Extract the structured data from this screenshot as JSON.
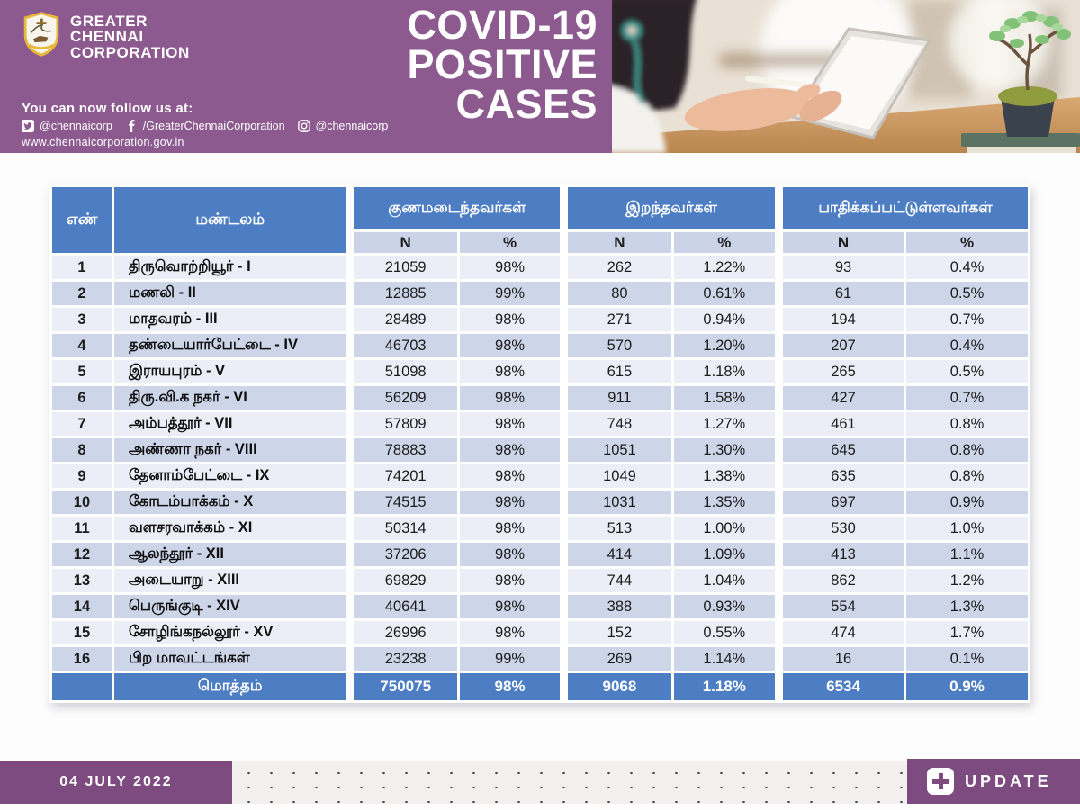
{
  "brand": {
    "name_lines": "GREATER\nCHENNAI\nCORPORATION",
    "follow_title": "You can now follow us at:",
    "social": [
      {
        "icon": "twitter-icon",
        "handle": "@chennaicorp"
      },
      {
        "icon": "facebook-icon",
        "handle": "/GreaterChennaiCorporation"
      },
      {
        "icon": "instagram-icon",
        "handle": "@chennaicorp"
      }
    ],
    "website": "www.chennaicorporation.gov.in"
  },
  "title": {
    "line1": "COVID-19",
    "line2": "POSITIVE",
    "line3": "CASES"
  },
  "colors": {
    "banner_purple": "#8d5a90",
    "footer_purple": "#7d4b7f",
    "table_header_blue": "#4d7ec3",
    "subheader_bg": "#cbd3e9",
    "row_light": "#ebeef7",
    "row_dark": "#cdd5e9"
  },
  "table": {
    "headers": {
      "num": "எண்",
      "zone": "மண்டலம்",
      "recovered": "குணமடைந்தவர்கள்",
      "deceased": "இறந்தவர்கள்",
      "affected": "பாதிக்கப்பட்டுள்ளவர்கள்",
      "n": "N",
      "pct": "%"
    },
    "rows": [
      {
        "num": "1",
        "zone": "திருவொற்றியூர் - I",
        "rec_n": "21059",
        "rec_pct": "98%",
        "dec_n": "262",
        "dec_pct": "1.22%",
        "act_n": "93",
        "act_pct": "0.4%"
      },
      {
        "num": "2",
        "zone": "மணலி - II",
        "rec_n": "12885",
        "rec_pct": "99%",
        "dec_n": "80",
        "dec_pct": "0.61%",
        "act_n": "61",
        "act_pct": "0.5%"
      },
      {
        "num": "3",
        "zone": "மாதவரம் - III",
        "rec_n": "28489",
        "rec_pct": "98%",
        "dec_n": "271",
        "dec_pct": "0.94%",
        "act_n": "194",
        "act_pct": "0.7%"
      },
      {
        "num": "4",
        "zone": "தண்டையார்பேட்டை - IV",
        "rec_n": "46703",
        "rec_pct": "98%",
        "dec_n": "570",
        "dec_pct": "1.20%",
        "act_n": "207",
        "act_pct": "0.4%"
      },
      {
        "num": "5",
        "zone": "இராயபுரம் - V",
        "rec_n": "51098",
        "rec_pct": "98%",
        "dec_n": "615",
        "dec_pct": "1.18%",
        "act_n": "265",
        "act_pct": "0.5%"
      },
      {
        "num": "6",
        "zone": "திரு.வி.க நகர் - VI",
        "rec_n": "56209",
        "rec_pct": "98%",
        "dec_n": "911",
        "dec_pct": "1.58%",
        "act_n": "427",
        "act_pct": "0.7%"
      },
      {
        "num": "7",
        "zone": "அம்பத்தூர் - VII",
        "rec_n": "57809",
        "rec_pct": "98%",
        "dec_n": "748",
        "dec_pct": "1.27%",
        "act_n": "461",
        "act_pct": "0.8%"
      },
      {
        "num": "8",
        "zone": "அண்ணா நகர் - VIII",
        "rec_n": "78883",
        "rec_pct": "98%",
        "dec_n": "1051",
        "dec_pct": "1.30%",
        "act_n": "645",
        "act_pct": "0.8%"
      },
      {
        "num": "9",
        "zone": "தேனாம்பேட்டை - IX",
        "rec_n": "74201",
        "rec_pct": "98%",
        "dec_n": "1049",
        "dec_pct": "1.38%",
        "act_n": "635",
        "act_pct": "0.8%"
      },
      {
        "num": "10",
        "zone": "கோடம்பாக்கம் - X",
        "rec_n": "74515",
        "rec_pct": "98%",
        "dec_n": "1031",
        "dec_pct": "1.35%",
        "act_n": "697",
        "act_pct": "0.9%"
      },
      {
        "num": "11",
        "zone": "வளசரவாக்கம் - XI",
        "rec_n": "50314",
        "rec_pct": "98%",
        "dec_n": "513",
        "dec_pct": "1.00%",
        "act_n": "530",
        "act_pct": "1.0%"
      },
      {
        "num": "12",
        "zone": "ஆலந்தூர் - XII",
        "rec_n": "37206",
        "rec_pct": "98%",
        "dec_n": "414",
        "dec_pct": "1.09%",
        "act_n": "413",
        "act_pct": "1.1%"
      },
      {
        "num": "13",
        "zone": "அடையாறு - XIII",
        "rec_n": "69829",
        "rec_pct": "98%",
        "dec_n": "744",
        "dec_pct": "1.04%",
        "act_n": "862",
        "act_pct": "1.2%"
      },
      {
        "num": "14",
        "zone": "பெருங்குடி - XIV",
        "rec_n": "40641",
        "rec_pct": "98%",
        "dec_n": "388",
        "dec_pct": "0.93%",
        "act_n": "554",
        "act_pct": "1.3%"
      },
      {
        "num": "15",
        "zone": "சோழிங்கநல்லூர் - XV",
        "rec_n": "26996",
        "rec_pct": "98%",
        "dec_n": "152",
        "dec_pct": "0.55%",
        "act_n": "474",
        "act_pct": "1.7%"
      },
      {
        "num": "16",
        "zone": "பிற மாவட்டங்கள்",
        "rec_n": "23238",
        "rec_pct": "99%",
        "dec_n": "269",
        "dec_pct": "1.14%",
        "act_n": "16",
        "act_pct": "0.1%"
      }
    ],
    "total": {
      "label": "மொத்தம்",
      "rec_n": "750075",
      "rec_pct": "98%",
      "dec_n": "9068",
      "dec_pct": "1.18%",
      "act_n": "6534",
      "act_pct": "0.9%"
    }
  },
  "footer": {
    "date": "04 JULY 2022",
    "update_label": "UPDATE"
  },
  "chart_data": {
    "type": "table",
    "title": "COVID-19 POSITIVE CASES",
    "columns": [
      "எண்",
      "மண்டலம்",
      "குணமடைந்தவர்கள் N",
      "குணமடைந்தவர்கள் %",
      "இறந்தவர்கள் N",
      "இறந்தவர்கள் %",
      "பாதிக்கப்பட்டுள்ளவர்கள் N",
      "பாதிக்கப்பட்டுள்ளவர்கள் %"
    ],
    "rows": [
      [
        "1",
        "திருவொற்றியூர் - I",
        21059,
        "98%",
        262,
        "1.22%",
        93,
        "0.4%"
      ],
      [
        "2",
        "மணலி - II",
        12885,
        "99%",
        80,
        "0.61%",
        61,
        "0.5%"
      ],
      [
        "3",
        "மாதவரம் - III",
        28489,
        "98%",
        271,
        "0.94%",
        194,
        "0.7%"
      ],
      [
        "4",
        "தண்டையார்பேட்டை - IV",
        46703,
        "98%",
        570,
        "1.20%",
        207,
        "0.4%"
      ],
      [
        "5",
        "இராயபுரம் - V",
        51098,
        "98%",
        615,
        "1.18%",
        265,
        "0.5%"
      ],
      [
        "6",
        "திரு.வி.க நகர் - VI",
        56209,
        "98%",
        911,
        "1.58%",
        427,
        "0.7%"
      ],
      [
        "7",
        "அம்பத்தூர் - VII",
        57809,
        "98%",
        748,
        "1.27%",
        461,
        "0.8%"
      ],
      [
        "8",
        "அண்ணா நகர் - VIII",
        78883,
        "98%",
        1051,
        "1.30%",
        645,
        "0.8%"
      ],
      [
        "9",
        "தேனாம்பேட்டை - IX",
        74201,
        "98%",
        1049,
        "1.38%",
        635,
        "0.8%"
      ],
      [
        "10",
        "கோடம்பாக்கம் - X",
        74515,
        "98%",
        1031,
        "1.35%",
        697,
        "0.9%"
      ],
      [
        "11",
        "வளசரவாக்கம் - XI",
        50314,
        "98%",
        513,
        "1.00%",
        530,
        "1.0%"
      ],
      [
        "12",
        "ஆலந்தூர் - XII",
        37206,
        "98%",
        414,
        "1.09%",
        413,
        "1.1%"
      ],
      [
        "13",
        "அடையாறு - XIII",
        69829,
        "98%",
        744,
        "1.04%",
        862,
        "1.2%"
      ],
      [
        "14",
        "பெருங்குடி - XIV",
        40641,
        "98%",
        388,
        "0.93%",
        554,
        "1.3%"
      ],
      [
        "15",
        "சோழிங்கநல்லூர் - XV",
        26996,
        "98%",
        152,
        "0.55%",
        474,
        "1.7%"
      ],
      [
        "16",
        "பிற மாவட்டங்கள்",
        23238,
        "99%",
        269,
        "1.14%",
        16,
        "0.1%"
      ]
    ],
    "total_row": [
      "",
      "மொத்தம்",
      750075,
      "98%",
      9068,
      "1.18%",
      6534,
      "0.9%"
    ]
  }
}
